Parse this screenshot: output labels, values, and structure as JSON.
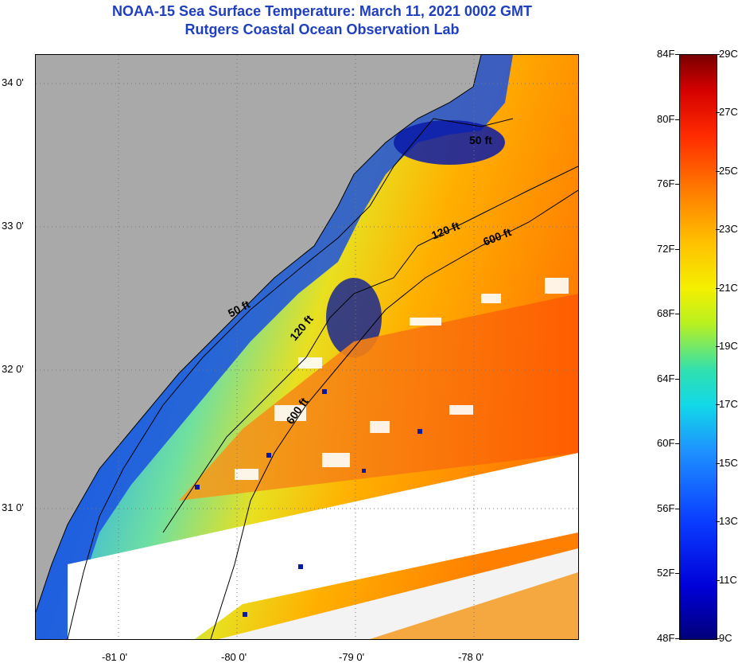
{
  "title": {
    "line1": "NOAA-15 Sea Surface Temperature:  March 11, 2021 0002 GMT",
    "line2": "Rutgers Coastal Ocean Observation Lab"
  },
  "axes": {
    "y_labels": [
      "34 0'",
      "33 0'",
      "32 0'",
      "31 0'"
    ],
    "x_labels": [
      "-81 0'",
      "-80 0'",
      "-79 0'",
      "-78 0'"
    ]
  },
  "contours": [
    "50 ft",
    "120 ft",
    "600 ft",
    "50 ft",
    "120 ft",
    "600 ft"
  ],
  "colorbar": {
    "fahrenheit": [
      "84F",
      "80F",
      "76F",
      "72F",
      "68F",
      "64F",
      "60F",
      "56F",
      "52F",
      "48F"
    ],
    "celsius": [
      "29C",
      "27C",
      "25C",
      "23C",
      "21C",
      "19C",
      "17C",
      "15C",
      "13C",
      "11C",
      "9C"
    ]
  },
  "colors": {
    "land": "#a9a9a9",
    "title": "#1f3fbf",
    "cold": "#0a2ad0",
    "warm": "#ff6a00"
  }
}
